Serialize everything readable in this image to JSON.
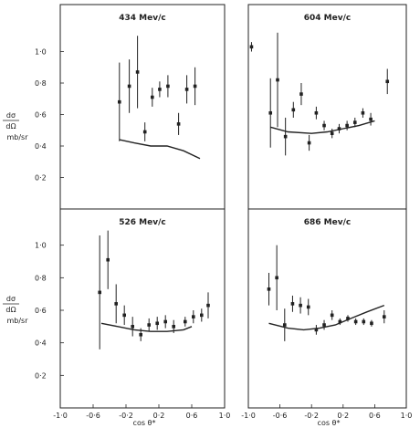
{
  "figure": {
    "ylabel_numerator": "dσ",
    "ylabel_denominator": "dΩ",
    "ylabel_unit": "mb/sr",
    "xlabel": "cos θ*",
    "colors": {
      "ink": "#222222",
      "background": "#ffffff"
    }
  },
  "chart_data": [
    {
      "type": "scatter",
      "title": "434 Mev/c",
      "xlim": [
        -1.0,
        1.0
      ],
      "ylim": [
        0,
        1.2
      ],
      "yticks": [
        "0·2",
        "0·4",
        "0·6",
        "0·8",
        "1·0"
      ],
      "xticks": [],
      "points": [
        {
          "x": -0.28,
          "y": 0.68,
          "err": 0.25
        },
        {
          "x": -0.16,
          "y": 0.78,
          "err": 0.17
        },
        {
          "x": -0.06,
          "y": 0.87,
          "err": 0.23
        },
        {
          "x": 0.03,
          "y": 0.49,
          "err": 0.06
        },
        {
          "x": 0.12,
          "y": 0.71,
          "err": 0.06
        },
        {
          "x": 0.21,
          "y": 0.76,
          "err": 0.05
        },
        {
          "x": 0.31,
          "y": 0.78,
          "err": 0.07
        },
        {
          "x": 0.44,
          "y": 0.54,
          "err": 0.07
        },
        {
          "x": 0.54,
          "y": 0.76,
          "err": 0.09
        },
        {
          "x": 0.64,
          "y": 0.78,
          "err": 0.12
        }
      ],
      "curve": {
        "x": [
          -0.28,
          -0.1,
          0.1,
          0.3,
          0.5,
          0.7
        ],
        "y": [
          0.44,
          0.42,
          0.4,
          0.4,
          0.37,
          0.32
        ]
      }
    },
    {
      "type": "scatter",
      "title": "604 Mev/c",
      "xlim": [
        -1.0,
        1.0
      ],
      "ylim": [
        0,
        1.2
      ],
      "yticks": [],
      "xticks": [],
      "points": [
        {
          "x": -0.96,
          "y": 1.03,
          "err": 0.03
        },
        {
          "x": -0.72,
          "y": 0.61,
          "err": 0.22
        },
        {
          "x": -0.63,
          "y": 0.82,
          "err": 0.3
        },
        {
          "x": -0.53,
          "y": 0.46,
          "err": 0.12
        },
        {
          "x": -0.43,
          "y": 0.63,
          "err": 0.05
        },
        {
          "x": -0.33,
          "y": 0.73,
          "err": 0.07
        },
        {
          "x": -0.23,
          "y": 0.42,
          "err": 0.05
        },
        {
          "x": -0.14,
          "y": 0.61,
          "err": 0.04
        },
        {
          "x": -0.04,
          "y": 0.53,
          "err": 0.03
        },
        {
          "x": 0.06,
          "y": 0.48,
          "err": 0.03
        },
        {
          "x": 0.15,
          "y": 0.51,
          "err": 0.03
        },
        {
          "x": 0.25,
          "y": 0.53,
          "err": 0.03
        },
        {
          "x": 0.35,
          "y": 0.55,
          "err": 0.03
        },
        {
          "x": 0.45,
          "y": 0.61,
          "err": 0.03
        },
        {
          "x": 0.55,
          "y": 0.57,
          "err": 0.04
        },
        {
          "x": 0.76,
          "y": 0.81,
          "err": 0.08
        }
      ],
      "curve": {
        "x": [
          -0.72,
          -0.5,
          -0.2,
          0.0,
          0.2,
          0.4,
          0.6
        ],
        "y": [
          0.52,
          0.49,
          0.48,
          0.49,
          0.51,
          0.53,
          0.56
        ]
      }
    },
    {
      "type": "scatter",
      "title": "526 Mev/c",
      "xlim": [
        -1.0,
        1.0
      ],
      "ylim": [
        0,
        1.2
      ],
      "yticks": [
        "0·2",
        "0·4",
        "0·6",
        "0·8",
        "1·0"
      ],
      "xticks": [
        "-1·0",
        "-0·6",
        "-0·2",
        "0·2",
        "0·6",
        "1·0"
      ],
      "points": [
        {
          "x": -0.52,
          "y": 0.71,
          "err": 0.35
        },
        {
          "x": -0.42,
          "y": 0.91,
          "err": 0.18
        },
        {
          "x": -0.32,
          "y": 0.64,
          "err": 0.12
        },
        {
          "x": -0.22,
          "y": 0.57,
          "err": 0.06
        },
        {
          "x": -0.12,
          "y": 0.5,
          "err": 0.06
        },
        {
          "x": -0.02,
          "y": 0.45,
          "err": 0.04
        },
        {
          "x": 0.08,
          "y": 0.51,
          "err": 0.04
        },
        {
          "x": 0.18,
          "y": 0.52,
          "err": 0.04
        },
        {
          "x": 0.28,
          "y": 0.53,
          "err": 0.04
        },
        {
          "x": 0.38,
          "y": 0.5,
          "err": 0.04
        },
        {
          "x": 0.52,
          "y": 0.53,
          "err": 0.03
        },
        {
          "x": 0.62,
          "y": 0.56,
          "err": 0.04
        },
        {
          "x": 0.72,
          "y": 0.57,
          "err": 0.04
        },
        {
          "x": 0.8,
          "y": 0.63,
          "err": 0.08
        }
      ],
      "curve": {
        "x": [
          -0.5,
          -0.3,
          -0.1,
          0.1,
          0.3,
          0.5,
          0.6
        ],
        "y": [
          0.52,
          0.5,
          0.48,
          0.47,
          0.47,
          0.48,
          0.5
        ]
      }
    },
    {
      "type": "scatter",
      "title": "686 Mev/c",
      "xlim": [
        -1.0,
        1.0
      ],
      "ylim": [
        0,
        1.2
      ],
      "yticks": [],
      "xticks": [
        "-1·0",
        "-0·6",
        "-0·2",
        "0·2",
        "0·6",
        "1·0"
      ],
      "points": [
        {
          "x": -0.74,
          "y": 0.73,
          "err": 0.1
        },
        {
          "x": -0.64,
          "y": 0.8,
          "err": 0.2
        },
        {
          "x": -0.54,
          "y": 0.51,
          "err": 0.1
        },
        {
          "x": -0.44,
          "y": 0.64,
          "err": 0.05
        },
        {
          "x": -0.34,
          "y": 0.63,
          "err": 0.05
        },
        {
          "x": -0.24,
          "y": 0.62,
          "err": 0.05
        },
        {
          "x": -0.14,
          "y": 0.48,
          "err": 0.03
        },
        {
          "x": -0.04,
          "y": 0.51,
          "err": 0.03
        },
        {
          "x": 0.06,
          "y": 0.57,
          "err": 0.03
        },
        {
          "x": 0.16,
          "y": 0.53,
          "err": 0.02
        },
        {
          "x": 0.26,
          "y": 0.55,
          "err": 0.02
        },
        {
          "x": 0.36,
          "y": 0.53,
          "err": 0.02
        },
        {
          "x": 0.46,
          "y": 0.53,
          "err": 0.02
        },
        {
          "x": 0.56,
          "y": 0.52,
          "err": 0.02
        },
        {
          "x": 0.72,
          "y": 0.56,
          "err": 0.04
        }
      ],
      "curve": {
        "x": [
          -0.74,
          -0.5,
          -0.3,
          -0.1,
          0.1,
          0.3,
          0.5,
          0.72
        ],
        "y": [
          0.52,
          0.49,
          0.48,
          0.49,
          0.51,
          0.55,
          0.59,
          0.63
        ]
      }
    }
  ]
}
